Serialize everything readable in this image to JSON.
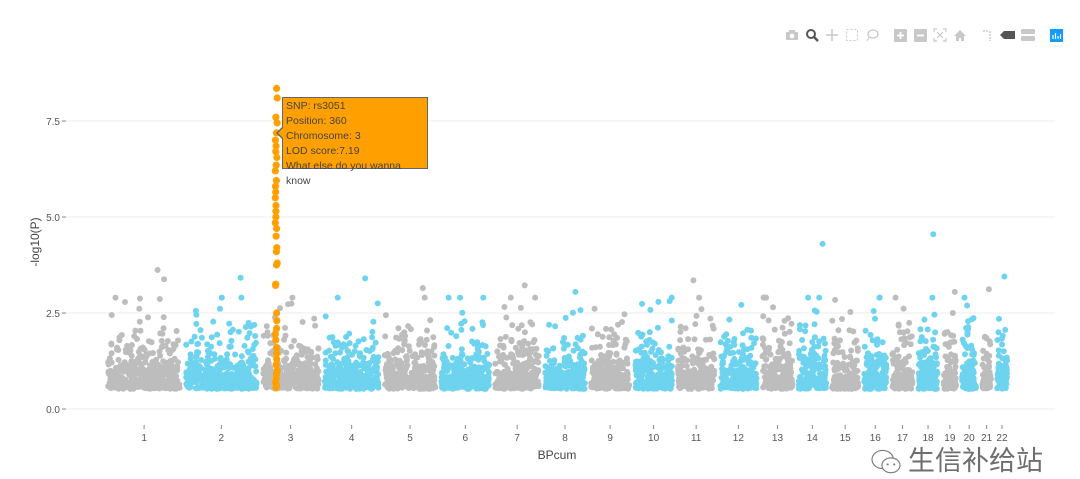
{
  "chart_data": {
    "type": "scatter",
    "title": "",
    "xlabel": "BPcum",
    "ylabel": "-log10(P)",
    "ylim": [
      -0.3,
      9.0
    ],
    "yticks": [
      0,
      2.5,
      5,
      7.5
    ],
    "ytick_labels": [
      "0.0",
      "2.5",
      "5.0",
      "7.5"
    ],
    "xtick_labels": [
      "1",
      "2",
      "3",
      "4",
      "5",
      "6",
      "7",
      "8",
      "9",
      "10",
      "11",
      "12",
      "13",
      "14",
      "15",
      "16",
      "17",
      "18",
      "19",
      "20",
      "21",
      "22"
    ],
    "grid": true,
    "colors": {
      "odd_chromosomes": "#bdbdbd",
      "even_chromosomes": "#6dd3ef",
      "highlight": "#ffa000"
    },
    "top_hits": [
      {
        "chromosome": 1,
        "value": 3.62
      },
      {
        "chromosome": 1,
        "value": 3.38
      },
      {
        "chromosome": 2,
        "value": 3.42
      },
      {
        "chromosome": 4,
        "value": 3.4
      },
      {
        "chromosome": 5,
        "value": 3.15
      },
      {
        "chromosome": 7,
        "value": 3.22
      },
      {
        "chromosome": 8,
        "value": 3.05
      },
      {
        "chromosome": 11,
        "value": 3.35
      },
      {
        "chromosome": 14,
        "value": 4.3
      },
      {
        "chromosome": 16,
        "value": 2.9
      },
      {
        "chromosome": 18,
        "value": 4.55
      },
      {
        "chromosome": 19,
        "value": 3.05
      },
      {
        "chromosome": 21,
        "value": 3.12
      },
      {
        "chromosome": 22,
        "value": 3.45
      }
    ],
    "highlighted_snps": {
      "chromosome": 3,
      "values": [
        8.35,
        8.1,
        7.6,
        7.45,
        7.19,
        7.0,
        6.85,
        6.7,
        6.55,
        6.35,
        6.2,
        5.95,
        5.8,
        5.65,
        5.5,
        5.3,
        5.15,
        5.0,
        4.85,
        4.7,
        4.5,
        4.2,
        4.1,
        3.8,
        3.75,
        3.25,
        3.22,
        2.5,
        2.3,
        2.1,
        1.95,
        1.8,
        1.6,
        1.45,
        1.3,
        1.15,
        1.0,
        0.9,
        0.8,
        0.7,
        0.62,
        0.55
      ]
    },
    "tooltip": {
      "snp": "SNP: rs3051",
      "position": "Position: 360",
      "chromosome": "Chromosome: 3",
      "lod": "LOD score:7.19",
      "extra": "What else do you wanna know"
    }
  },
  "toolbar": {
    "icons": [
      "camera-icon",
      "zoom-icon",
      "pan-icon",
      "box-select-icon",
      "lasso-select-icon",
      "zoom-in-icon",
      "zoom-out-icon",
      "autoscale-icon",
      "home-icon",
      "spike-lines-icon",
      "hover-closest-icon",
      "hover-compare-icon",
      "plotly-logo-icon"
    ]
  },
  "watermark": {
    "text": "生信补给站"
  }
}
